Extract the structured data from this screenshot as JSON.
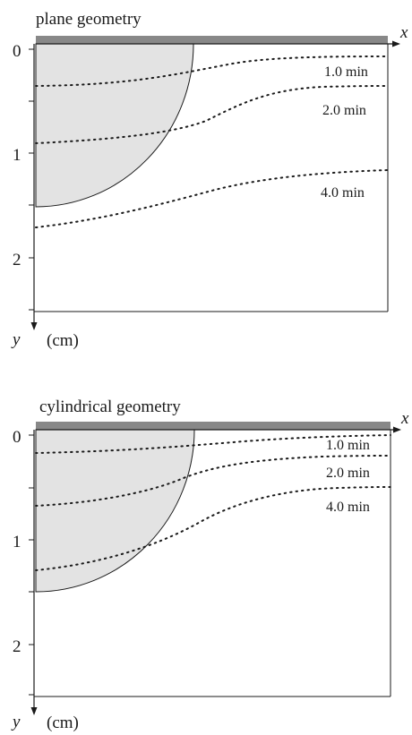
{
  "panels": [
    {
      "title": "plane geometry",
      "x_axis_label": "x",
      "y_axis_label": "y",
      "y_unit": "(cm)",
      "y_ticks": [
        "0",
        "1",
        "2"
      ],
      "curve_labels": [
        "1.0 min",
        "2.0 min",
        "4.0 min"
      ]
    },
    {
      "title": "cylindrical geometry",
      "x_axis_label": "x",
      "y_axis_label": "y",
      "y_unit": "(cm)",
      "y_ticks": [
        "0",
        "1",
        "2"
      ],
      "curve_labels": [
        "1.0 min",
        "2.0 min",
        "4.0 min"
      ]
    }
  ],
  "colors": {
    "bar": "#888888",
    "region_fill": "#e3e3e3",
    "line": "#1a1a1a"
  }
}
